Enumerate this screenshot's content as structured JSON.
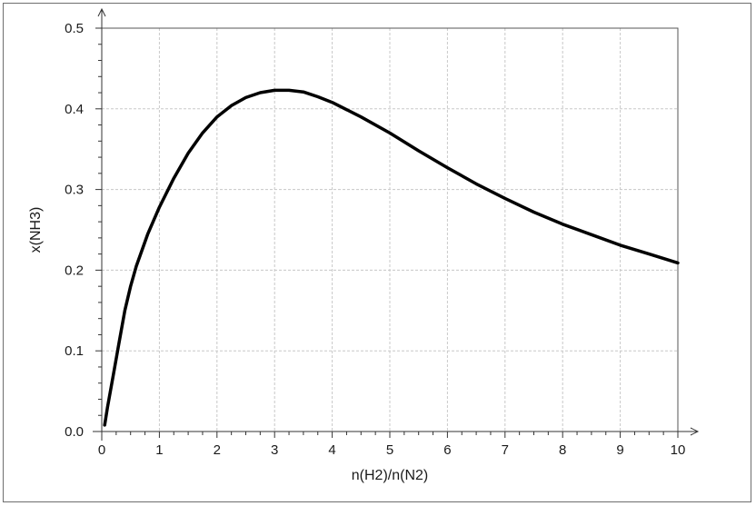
{
  "chart_data": {
    "type": "line",
    "xlabel": "n(H2)/n(N2)",
    "ylabel": "x(NH3)",
    "xlim": [
      0,
      10
    ],
    "ylim": [
      0,
      0.5
    ],
    "x_ticks": [
      "0",
      "1",
      "2",
      "3",
      "4",
      "5",
      "6",
      "7",
      "8",
      "9",
      "10"
    ],
    "y_ticks": [
      "0.0",
      "0.1",
      "0.2",
      "0.3",
      "0.4",
      "0.5"
    ],
    "grid": true,
    "series": [
      {
        "x": [
          0.05,
          0.1,
          0.2,
          0.3,
          0.4,
          0.5,
          0.6,
          0.8,
          1.0,
          1.25,
          1.5,
          1.75,
          2.0,
          2.25,
          2.5,
          2.75,
          3.0,
          3.25,
          3.5,
          3.75,
          4.0,
          4.5,
          5.0,
          5.5,
          6.0,
          6.5,
          7.0,
          7.5,
          8.0,
          8.5,
          9.0,
          9.5,
          10.0
        ],
        "values": [
          0.008,
          0.03,
          0.07,
          0.11,
          0.15,
          0.18,
          0.205,
          0.245,
          0.278,
          0.314,
          0.345,
          0.37,
          0.39,
          0.404,
          0.414,
          0.42,
          0.423,
          0.423,
          0.421,
          0.415,
          0.408,
          0.39,
          0.37,
          0.348,
          0.327,
          0.307,
          0.289,
          0.272,
          0.257,
          0.244,
          0.231,
          0.22,
          0.209
        ],
        "color": "#000000"
      }
    ]
  }
}
